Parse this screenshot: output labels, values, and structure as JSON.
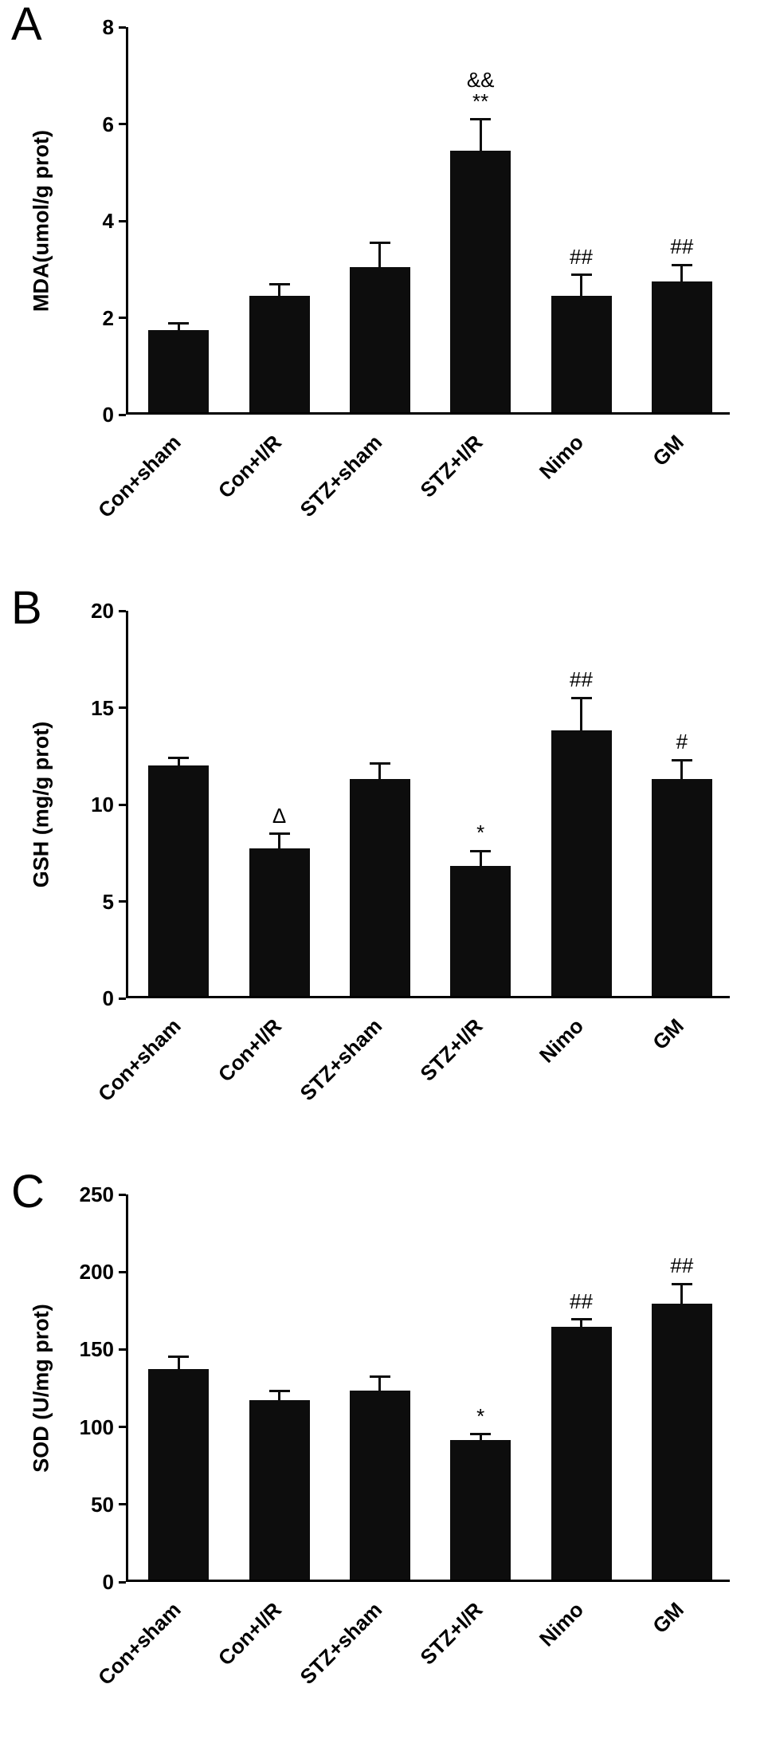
{
  "figure": {
    "background": "#ffffff",
    "bar_color": "#0d0d0d",
    "axis_color": "#000000",
    "text_color": "#000000"
  },
  "chart_data": [
    {
      "type": "bar",
      "panel_label": "A",
      "title": "",
      "xlabel": "",
      "ylabel": "MDA(umol/g prot)",
      "categories": [
        "Con+sham",
        "Con+I/R",
        "STZ+sham",
        "STZ+I/R",
        "Nimo",
        "GM"
      ],
      "values": [
        1.7,
        2.4,
        3.0,
        5.4,
        2.4,
        2.7
      ],
      "errors": [
        0.15,
        0.25,
        0.5,
        0.65,
        0.45,
        0.35
      ],
      "annotations": [
        [],
        [],
        [],
        [
          "&&",
          "**"
        ],
        [
          "##"
        ],
        [
          "##"
        ]
      ],
      "ylim": [
        0,
        8
      ],
      "yticks": [
        0,
        2,
        4,
        6,
        8
      ],
      "grid": false,
      "legend": false
    },
    {
      "type": "bar",
      "panel_label": "B",
      "title": "",
      "xlabel": "",
      "ylabel": "GSH (mg/g prot)",
      "categories": [
        "Con+sham",
        "Con+I/R",
        "STZ+sham",
        "STZ+I/R",
        "Nimo",
        "GM"
      ],
      "values": [
        11.9,
        7.6,
        11.2,
        6.7,
        13.7,
        11.2
      ],
      "errors": [
        0.4,
        0.8,
        0.8,
        0.8,
        1.7,
        1.0
      ],
      "annotations": [
        [],
        [
          "Δ"
        ],
        [],
        [
          "*"
        ],
        [
          "##"
        ],
        [
          "#"
        ]
      ],
      "ylim": [
        0,
        20
      ],
      "yticks": [
        0,
        5,
        10,
        15,
        20
      ],
      "grid": false,
      "legend": false
    },
    {
      "type": "bar",
      "panel_label": "C",
      "title": "",
      "xlabel": "",
      "ylabel": "SOD (U/mg prot)",
      "categories": [
        "Con+sham",
        "Con+I/R",
        "STZ+sham",
        "STZ+I/R",
        "Nimo",
        "GM"
      ],
      "values": [
        136,
        116,
        122,
        90,
        163,
        178
      ],
      "errors": [
        8,
        6,
        9,
        4,
        5,
        13
      ],
      "annotations": [
        [],
        [],
        [],
        [
          "*"
        ],
        [
          "##"
        ],
        [
          "##"
        ]
      ],
      "ylim": [
        0,
        250
      ],
      "yticks": [
        0,
        50,
        100,
        150,
        200,
        250
      ],
      "grid": false,
      "legend": false
    }
  ]
}
